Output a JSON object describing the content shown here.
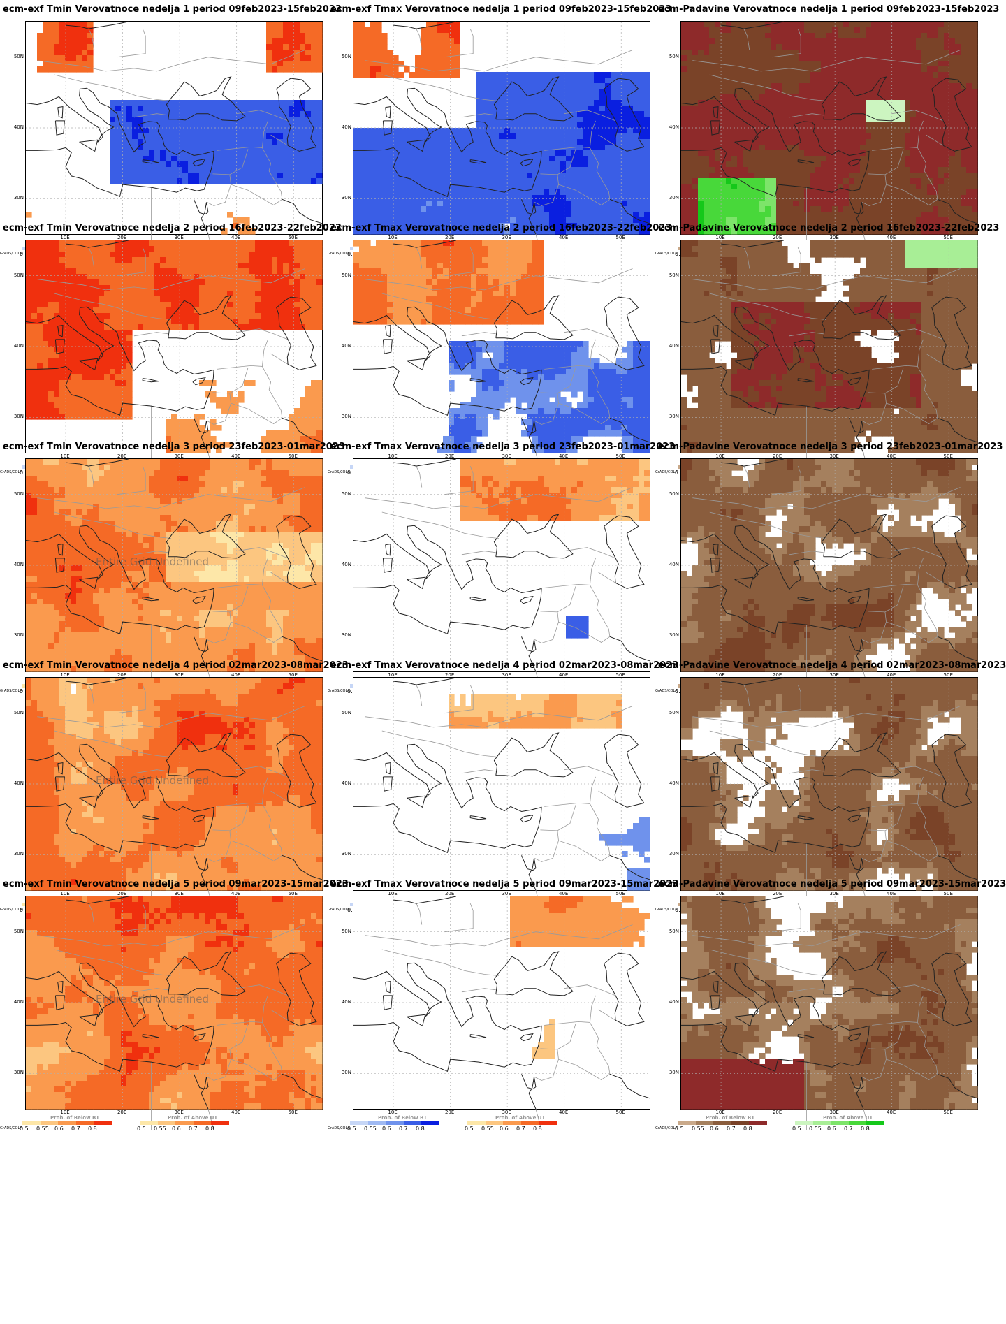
{
  "panels": [
    {
      "title": "ecm-exf Tmin Verovatnoce nedelja 1 period 09feb2023-15feb2023",
      "kind": "tmin",
      "week": 1,
      "undefined_text": ""
    },
    {
      "title": "ecm-exf Tmax Verovatnoce nedelja 1 period 09feb2023-15feb2023",
      "kind": "tmax",
      "week": 1,
      "undefined_text": ""
    },
    {
      "title": "ecm-Padavine Verovatnoce nedelja 1 period 09feb2023-15feb2023",
      "kind": "prcp",
      "week": 1,
      "undefined_text": ""
    },
    {
      "title": "ecm-exf Tmin Verovatnoce nedelja 2 period 16feb2023-22feb2023",
      "kind": "tmin",
      "week": 2,
      "undefined_text": ""
    },
    {
      "title": "ecm-exf Tmax Verovatnoce nedelja 2 period 16feb2023-22feb2023",
      "kind": "tmax",
      "week": 2,
      "undefined_text": ""
    },
    {
      "title": "ecm-Padavine Verovatnoce nedelja 2 period 16feb2023-22feb2023",
      "kind": "prcp",
      "week": 2,
      "undefined_text": ""
    },
    {
      "title": "ecm-exf Tmin Verovatnoce nedelja 3 period 23feb2023-01mar2023",
      "kind": "tmin",
      "week": 3,
      "undefined_text": "Entire Grid Undefined"
    },
    {
      "title": "ecm-exf Tmax Verovatnoce nedelja 3 period 23feb2023-01mar2023",
      "kind": "tmax",
      "week": 3,
      "undefined_text": ""
    },
    {
      "title": "ecm-Padavine Verovatnoce nedelja 3 period 23feb2023-01mar2023",
      "kind": "prcp",
      "week": 3,
      "undefined_text": ""
    },
    {
      "title": "ecm-exf Tmin Verovatnoce nedelja 4 period 02mar2023-08mar2023",
      "kind": "tmin",
      "week": 4,
      "undefined_text": "Entire Grid Undefined"
    },
    {
      "title": "ecm-exf Tmax Verovatnoce nedelja 4 period 02mar2023-08mar2023",
      "kind": "tmax",
      "week": 4,
      "undefined_text": ""
    },
    {
      "title": "ecm-Padavine Verovatnoce nedelja 4 period 02mar2023-08mar2023",
      "kind": "prcp",
      "week": 4,
      "undefined_text": ""
    },
    {
      "title": "ecm-exf Tmin Verovatnoce nedelja 5 period 09mar2023-15mar2023",
      "kind": "tmin",
      "week": 5,
      "undefined_text": "Entire Grid Undefined"
    },
    {
      "title": "ecm-exf Tmax Verovatnoce nedelja 5 period 09mar2023-15mar2023",
      "kind": "tmax",
      "week": 5,
      "undefined_text": ""
    },
    {
      "title": "ecm-Padavine Verovatnoce nedelja 5 period 09mar2023-15mar2023",
      "kind": "prcp",
      "week": 5,
      "undefined_text": ""
    }
  ],
  "axes": {
    "lat_labels": [
      "50N",
      "40N",
      "30N"
    ],
    "lon_labels": [
      "10E",
      "20E",
      "30E",
      "40E",
      "50E"
    ]
  },
  "legend": {
    "credit": "GrADS/COLA",
    "below_title": "Prob. of Below BT",
    "above_title": "Prob. of Above UT",
    "ticks": [
      "0.5",
      "0.55",
      "0.6",
      "0.7",
      "0.8"
    ],
    "colors": {
      "below": [
        "#c6d6f6",
        "#9fb9f2",
        "#6f92ec",
        "#3a5ee6",
        "#0a1fe0"
      ],
      "above_temp": [
        "#fde7a8",
        "#fcc680",
        "#fa9a4e",
        "#f56a26",
        "#f0300e"
      ],
      "below_prcp": [
        "#c9a98a",
        "#a5805e",
        "#8a5d3d",
        "#7a4328",
        "#8e2a2a"
      ],
      "above_prcp": [
        "#ccf5c0",
        "#a8ee96",
        "#7de46a",
        "#48d83a",
        "#15c81a"
      ]
    }
  }
}
